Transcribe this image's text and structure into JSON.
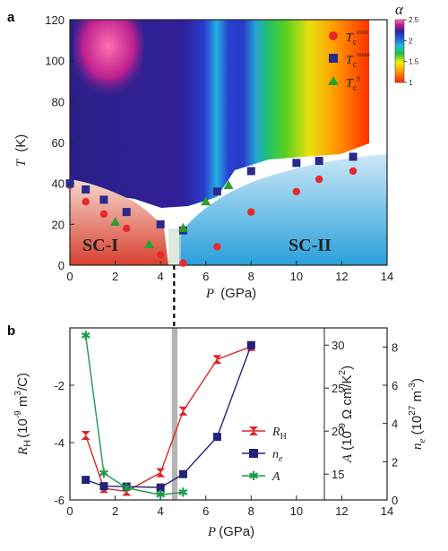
{
  "panels": {
    "a": {
      "tag": "a",
      "ylabel": "T",
      "ylabel_unit": "(K)",
      "xlabel": "P",
      "xlabel_unit": "(GPa)",
      "colorbar_label": "α",
      "region_labels": [
        "SC-I",
        "SC-II"
      ],
      "legend": [
        {
          "name": "T",
          "sub": "c",
          "sup": "zero"
        },
        {
          "name": "T",
          "sub": "c",
          "sup": "onset"
        },
        {
          "name": "T",
          "sub": "c",
          "sup": "χ"
        }
      ]
    },
    "b": {
      "tag": "b",
      "ylabel_left": "R",
      "ylabel_left_sub": "H",
      "ylabel_left_unit": "(10",
      "ylabel_left_exp": "-9",
      "ylabel_left_unit2": " m",
      "ylabel_left_exp2": "3",
      "ylabel_left_unit3": "/C)",
      "ylabel_mid": "A",
      "ylabel_mid_unit": " (10",
      "ylabel_mid_exp": "-9",
      "ylabel_mid_unit2": " Ω cm/K",
      "ylabel_mid_exp2": "2",
      "ylabel_mid_unit3": ")",
      "ylabel_right": "n",
      "ylabel_right_sub": "e",
      "ylabel_right_unit": " (10",
      "ylabel_right_exp": "27",
      "ylabel_right_unit2": " m",
      "ylabel_right_exp2": "-3",
      "ylabel_right_unit3": ")",
      "xlabel": "P",
      "xlabel_unit": "(GPa)",
      "legend": [
        {
          "name": "R",
          "sub": "H"
        },
        {
          "name": "n",
          "sub": "e"
        },
        {
          "name": "A",
          "sub": ""
        }
      ]
    }
  },
  "colors": {
    "Tc_zero": "#e8282c",
    "Tc_onset": "#2a2a8c",
    "Tc_chi": "#2aa02a",
    "RH": "#d8262a",
    "ne": "#22227a",
    "A": "#1e9a4a",
    "sc1_fill": "#e07a5a",
    "sc2_fill": "#3aa6d8"
  },
  "chart_data": [
    {
      "type": "scatter",
      "panel": "a",
      "xlim": [
        0,
        14
      ],
      "ylim": [
        0,
        120
      ],
      "x_ticks": [
        0,
        2,
        4,
        6,
        8,
        10,
        12,
        14
      ],
      "y_ticks": [
        0,
        20,
        40,
        60,
        80,
        100,
        120
      ],
      "colorbar": {
        "ticks": [
          1,
          1.5,
          2,
          2.5
        ],
        "min": 1,
        "max": 2.5
      },
      "series": [
        {
          "name": "Tc zero",
          "marker": "circle",
          "x": [
            0,
            0.7,
            1.5,
            2.5,
            4.0,
            5.0,
            6.5,
            8.0,
            10.0,
            11.0,
            12.5
          ],
          "y": [
            39,
            31,
            25,
            18,
            5,
            1,
            9,
            26,
            36,
            42,
            46
          ]
        },
        {
          "name": "Tc onset",
          "marker": "square",
          "x": [
            0,
            0.7,
            1.5,
            2.5,
            4.0,
            5.0,
            6.5,
            8.0,
            10.0,
            11.0,
            12.5
          ],
          "y": [
            40,
            37,
            32,
            26,
            20,
            17,
            36,
            46,
            50,
            51,
            53
          ]
        },
        {
          "name": "Tc chi",
          "marker": "triangle",
          "x": [
            2.0,
            3.5,
            5.0,
            6.0,
            7.0
          ],
          "y": [
            21,
            10,
            18,
            31,
            39
          ]
        }
      ]
    },
    {
      "type": "line",
      "panel": "b",
      "xlim": [
        0,
        14
      ],
      "x_ticks": [
        0,
        2,
        4,
        6,
        8,
        10,
        12,
        14
      ],
      "y_left": {
        "lim": [
          -6,
          0
        ],
        "ticks": [
          -6,
          -4,
          -2
        ]
      },
      "y_mid": {
        "lim": [
          12,
          32
        ],
        "ticks": [
          15,
          20,
          25,
          30
        ]
      },
      "y_right": {
        "lim": [
          0,
          9
        ],
        "ticks": [
          0,
          2,
          4,
          6,
          8
        ]
      },
      "shaded_band_x": [
        4.5,
        4.75
      ],
      "dashed_line_x": 4.6,
      "series": [
        {
          "name": "RH",
          "axis": "left",
          "marker": "hourglass",
          "x": [
            0.7,
            1.5,
            2.5,
            4.0,
            5.0,
            6.5,
            8.0
          ],
          "y": [
            -3.75,
            -5.6,
            -5.7,
            -5.05,
            -2.9,
            -1.1,
            -0.65
          ]
        },
        {
          "name": "ne",
          "axis": "right",
          "marker": "square",
          "x": [
            0.7,
            1.5,
            2.5,
            4.0,
            5.0,
            6.5,
            8.0
          ],
          "y": [
            1.05,
            0.72,
            0.7,
            0.65,
            1.35,
            3.3,
            8.1
          ]
        },
        {
          "name": "A",
          "axis": "mid",
          "marker": "star",
          "x": [
            0.7,
            1.5,
            2.5,
            4.0,
            5.0
          ],
          "y": [
            31.1,
            15.1,
            13.4,
            12.6,
            12.9
          ]
        }
      ]
    }
  ]
}
